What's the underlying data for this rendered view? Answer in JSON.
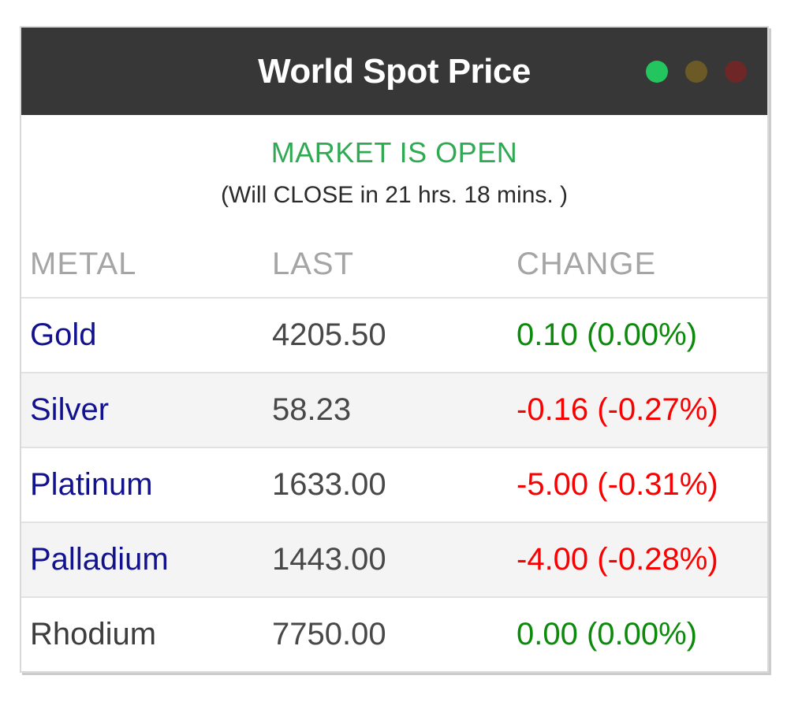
{
  "window": {
    "title": "World Spot Price",
    "dots": [
      {
        "name": "green-status-dot",
        "color": "#22c55e"
      },
      {
        "name": "amber-status-dot",
        "color": "#6b5a26"
      },
      {
        "name": "red-status-dot",
        "color": "#6f2626"
      }
    ]
  },
  "market_status": {
    "headline": "MARKET IS OPEN",
    "detail": "(Will CLOSE in 21 hrs. 18 mins. )"
  },
  "table": {
    "headers": [
      "METAL",
      "LAST",
      "CHANGE"
    ],
    "rows": [
      {
        "metal": "Gold",
        "last": "4205.50",
        "change": "0.10 (0.00%)",
        "trend": "up",
        "link": "true"
      },
      {
        "metal": "Silver",
        "last": "58.23",
        "change": "-0.16 (-0.27%)",
        "trend": "down",
        "link": "true"
      },
      {
        "metal": "Platinum",
        "last": "1633.00",
        "change": "-5.00 (-0.31%)",
        "trend": "down",
        "link": "true"
      },
      {
        "metal": "Palladium",
        "last": "1443.00",
        "change": "-4.00 (-0.28%)",
        "trend": "down",
        "link": "true"
      },
      {
        "metal": "Rhodium",
        "last": "7750.00",
        "change": "0.00 (0.00%)",
        "trend": "flat",
        "link": "false"
      }
    ]
  },
  "colors": {
    "titlebar_bg": "#373737",
    "open_green": "#2faa52",
    "change_up_green": "#0c8a0c",
    "change_down_red": "#fb0000",
    "metal_link_navy": "#12128f",
    "stripe_gray": "#f4f4f4"
  }
}
